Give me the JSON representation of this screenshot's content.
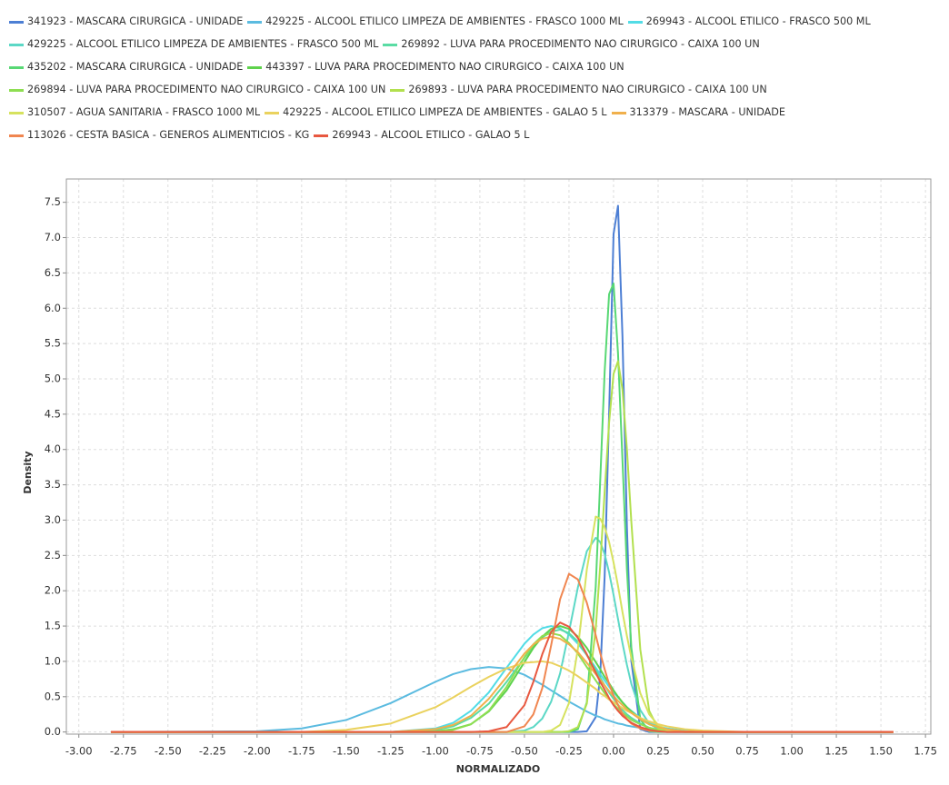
{
  "chart_data": {
    "type": "line",
    "x_label": "NORMALIZADO",
    "y_label": "Density",
    "xlim": [
      -3.07,
      1.78
    ],
    "ylim": [
      -0.03,
      7.83
    ],
    "grid": true,
    "xticks": [
      {
        "value": -3,
        "label": "-3.00"
      },
      {
        "value": -2.75,
        "label": "-2.75"
      },
      {
        "value": -2.5,
        "label": "-2.50"
      },
      {
        "value": -2.25,
        "label": "-2.25"
      },
      {
        "value": -2,
        "label": "-2.00"
      },
      {
        "value": -1.75,
        "label": "-1.75"
      },
      {
        "value": -1.5,
        "label": "-1.50"
      },
      {
        "value": -1.25,
        "label": "-1.25"
      },
      {
        "value": -1,
        "label": "-1.00"
      },
      {
        "value": -0.75,
        "label": "-0.75"
      },
      {
        "value": -0.5,
        "label": "-0.50"
      },
      {
        "value": -0.25,
        "label": "-0.25"
      },
      {
        "value": 0,
        "label": "0.00"
      },
      {
        "value": 0.25,
        "label": "0.25"
      },
      {
        "value": 0.5,
        "label": "0.50"
      },
      {
        "value": 0.75,
        "label": "0.75"
      },
      {
        "value": 1,
        "label": "1.00"
      },
      {
        "value": 1.25,
        "label": "1.25"
      },
      {
        "value": 1.5,
        "label": "1.50"
      },
      {
        "value": 1.75,
        "label": "1.75"
      }
    ],
    "yticks": [
      {
        "value": 0,
        "label": "0.0"
      },
      {
        "value": 0.5,
        "label": "0.5"
      },
      {
        "value": 1,
        "label": "1.0"
      },
      {
        "value": 1.5,
        "label": "1.5"
      },
      {
        "value": 2,
        "label": "2.0"
      },
      {
        "value": 2.5,
        "label": "2.5"
      },
      {
        "value": 3,
        "label": "3.0"
      },
      {
        "value": 3.5,
        "label": "3.5"
      },
      {
        "value": 4,
        "label": "4.0"
      },
      {
        "value": 4.5,
        "label": "4.5"
      },
      {
        "value": 5,
        "label": "5.0"
      },
      {
        "value": 5.5,
        "label": "5.5"
      },
      {
        "value": 6,
        "label": "6.0"
      },
      {
        "value": 6.5,
        "label": "6.5"
      },
      {
        "value": 7,
        "label": "7.0"
      },
      {
        "value": 7.5,
        "label": "7.5"
      }
    ],
    "x": [
      -2.82,
      -2.0,
      -1.75,
      -1.5,
      -1.25,
      -1.0,
      -0.9,
      -0.8,
      -0.7,
      -0.6,
      -0.5,
      -0.45,
      -0.4,
      -0.35,
      -0.3,
      -0.25,
      -0.2,
      -0.15,
      -0.1,
      -0.075,
      -0.05,
      -0.025,
      0,
      0.025,
      0.05,
      0.075,
      0.1,
      0.15,
      0.2,
      0.25,
      0.3,
      0.4,
      0.5,
      0.75,
      1.0,
      1.57
    ],
    "series": [
      {
        "name": "341923 - MASCARA CIRURGICA - UNIDADE",
        "color": "#4d7fd4",
        "values": [
          0,
          0,
          0,
          0,
          0,
          0,
          0,
          0,
          0,
          0,
          0,
          0,
          0,
          0,
          0,
          0,
          0,
          0.01,
          0.21,
          0.8,
          2.2,
          4.5,
          7.05,
          7.45,
          5.6,
          2.9,
          1.0,
          0.04,
          0,
          0,
          0,
          0,
          0,
          0,
          0,
          0
        ]
      },
      {
        "name": "429225 - ALCOOL ETILICO LIMPEZA DE AMBIENTES - FRASCO 1000 ML",
        "color": "#5bbbe0",
        "values": [
          0,
          0.01,
          0.05,
          0.17,
          0.41,
          0.71,
          0.82,
          0.89,
          0.92,
          0.9,
          0.81,
          0.74,
          0.67,
          0.59,
          0.51,
          0.43,
          0.36,
          0.29,
          0.23,
          0.21,
          0.18,
          0.16,
          0.14,
          0.12,
          0.11,
          0.09,
          0.08,
          0.06,
          0.04,
          0.03,
          0.02,
          0.01,
          0,
          0,
          0,
          0
        ]
      },
      {
        "name": "269943 - ALCOOL ETILICO - FRASCO 500 ML",
        "color": "#52dce6",
        "values": [
          0,
          0,
          0,
          0,
          0,
          0.05,
          0.13,
          0.3,
          0.56,
          0.91,
          1.25,
          1.38,
          1.47,
          1.5,
          1.47,
          1.38,
          1.25,
          1.09,
          0.91,
          0.82,
          0.73,
          0.64,
          0.56,
          0.49,
          0.42,
          0.35,
          0.3,
          0.2,
          0.13,
          0.08,
          0.05,
          0.02,
          0,
          0,
          0,
          0
        ]
      },
      {
        "name": "429225 - ALCOOL ETILICO LIMPEZA DE AMBIENTES - FRASCO 500 ML",
        "color": "#5cd8c6",
        "values": [
          0,
          0,
          0,
          0,
          0,
          0,
          0,
          0,
          0,
          0,
          0.02,
          0.07,
          0.19,
          0.43,
          0.83,
          1.42,
          2.05,
          2.56,
          2.75,
          2.69,
          2.52,
          2.26,
          1.94,
          1.6,
          1.26,
          0.95,
          0.68,
          0.31,
          0.12,
          0.04,
          0.01,
          0,
          0,
          0,
          0,
          0
        ]
      },
      {
        "name": "269892 - LUVA PARA PROCEDIMENTO NAO CIRURGICO - CAIXA 100 UN",
        "color": "#5adca4",
        "values": [
          0,
          0,
          0,
          0,
          0,
          0.03,
          0.08,
          0.2,
          0.4,
          0.71,
          1.05,
          1.21,
          1.34,
          1.42,
          1.45,
          1.4,
          1.28,
          1.09,
          0.88,
          0.77,
          0.66,
          0.56,
          0.47,
          0.39,
          0.31,
          0.25,
          0.2,
          0.12,
          0.06,
          0.03,
          0.02,
          0,
          0,
          0,
          0,
          0
        ]
      },
      {
        "name": "435202 - MASCARA CIRURGICA - UNIDADE",
        "color": "#58d874",
        "values": [
          0,
          0,
          0,
          0,
          0,
          0,
          0,
          0,
          0,
          0,
          0,
          0,
          0,
          0,
          0,
          0,
          0.04,
          0.42,
          2.06,
          3.55,
          5.1,
          6.2,
          6.35,
          5.36,
          3.85,
          2.3,
          1.19,
          0.18,
          0.01,
          0,
          0,
          0,
          0,
          0,
          0,
          0
        ]
      },
      {
        "name": "443397 - LUVA PARA PROCEDIMENTO NAO CIRURGICO - CAIXA 100 UN",
        "color": "#5ed24c",
        "values": [
          0,
          0,
          0,
          0,
          0,
          0.01,
          0.04,
          0.11,
          0.29,
          0.59,
          0.99,
          1.19,
          1.35,
          1.46,
          1.5,
          1.46,
          1.35,
          1.19,
          0.99,
          0.89,
          0.78,
          0.69,
          0.59,
          0.5,
          0.42,
          0.35,
          0.29,
          0.18,
          0.11,
          0.07,
          0.04,
          0.01,
          0,
          0,
          0,
          0
        ]
      },
      {
        "name": "269894 - LUVA PARA PROCEDIMENTO NAO CIRURGICO - CAIXA 100 UN",
        "color": "#8ede52",
        "values": [
          0,
          0,
          0,
          0,
          0,
          0.01,
          0.03,
          0.11,
          0.3,
          0.64,
          1.06,
          1.24,
          1.36,
          1.4,
          1.37,
          1.26,
          1.11,
          0.92,
          0.73,
          0.64,
          0.55,
          0.47,
          0.39,
          0.33,
          0.27,
          0.22,
          0.17,
          0.11,
          0.06,
          0.03,
          0.02,
          0,
          0,
          0,
          0,
          0
        ]
      },
      {
        "name": "269893 - LUVA PARA PROCEDIMENTO NAO CIRURGICO - CAIXA 100 UN",
        "color": "#b2e04e",
        "values": [
          0,
          0,
          0,
          0,
          0,
          0,
          0,
          0,
          0,
          0,
          0,
          0,
          0,
          0,
          0,
          0.01,
          0.07,
          0.4,
          1.46,
          2.35,
          3.4,
          4.38,
          5.07,
          5.25,
          4.85,
          4.0,
          2.97,
          1.17,
          0.3,
          0.05,
          0.01,
          0,
          0,
          0,
          0,
          0
        ]
      },
      {
        "name": "310507 - AGUA SANITARIA - FRASCO 1000 ML",
        "color": "#d6e25e",
        "values": [
          0,
          0,
          0,
          0,
          0,
          0,
          0,
          0,
          0,
          0,
          0,
          0,
          0,
          0.02,
          0.1,
          0.41,
          1.18,
          2.3,
          3.05,
          3.02,
          2.9,
          2.69,
          2.4,
          2.07,
          1.7,
          1.36,
          1.05,
          0.55,
          0.25,
          0.1,
          0.03,
          0,
          0,
          0,
          0,
          0
        ]
      },
      {
        "name": "429225 - ALCOOL ETILICO LIMPEZA DE AMBIENTES - GALAO 5 L",
        "color": "#ead25e",
        "values": [
          0,
          0,
          0,
          0.03,
          0.12,
          0.35,
          0.49,
          0.64,
          0.78,
          0.9,
          0.98,
          0.99,
          1.0,
          0.98,
          0.93,
          0.87,
          0.79,
          0.7,
          0.61,
          0.55,
          0.51,
          0.46,
          0.42,
          0.38,
          0.34,
          0.3,
          0.27,
          0.2,
          0.15,
          0.11,
          0.08,
          0.04,
          0.02,
          0,
          0,
          0
        ]
      },
      {
        "name": "313379 - MASCARA - UNIDADE",
        "color": "#f0b04c",
        "values": [
          0,
          0,
          0,
          0,
          0,
          0.04,
          0.1,
          0.23,
          0.47,
          0.78,
          1.11,
          1.24,
          1.32,
          1.35,
          1.32,
          1.24,
          1.13,
          0.98,
          0.82,
          0.74,
          0.66,
          0.58,
          0.51,
          0.44,
          0.38,
          0.32,
          0.27,
          0.18,
          0.11,
          0.07,
          0.04,
          0.01,
          0,
          0,
          0,
          0
        ]
      },
      {
        "name": "113026 - CESTA BASICA - GENEROS ALIMENTICIOS - KG",
        "color": "#f08650",
        "values": [
          0,
          0,
          0,
          0,
          0,
          0,
          0,
          0,
          0,
          0,
          0.08,
          0.25,
          0.62,
          1.23,
          1.88,
          2.24,
          2.16,
          1.83,
          1.37,
          1.12,
          0.89,
          0.68,
          0.52,
          0.38,
          0.26,
          0.18,
          0.12,
          0.05,
          0.02,
          0.01,
          0,
          0,
          0,
          0,
          0,
          0
        ]
      },
      {
        "name": "269943 - ALCOOL ETILICO - GALAO 5 L",
        "color": "#e85840",
        "values": [
          0,
          0,
          0,
          0,
          0,
          0,
          0,
          0,
          0.01,
          0.07,
          0.38,
          0.71,
          1.1,
          1.42,
          1.55,
          1.49,
          1.33,
          1.1,
          0.84,
          0.71,
          0.6,
          0.48,
          0.38,
          0.3,
          0.23,
          0.18,
          0.13,
          0.07,
          0.03,
          0.01,
          0,
          0,
          0,
          0,
          0,
          0
        ]
      }
    ]
  }
}
